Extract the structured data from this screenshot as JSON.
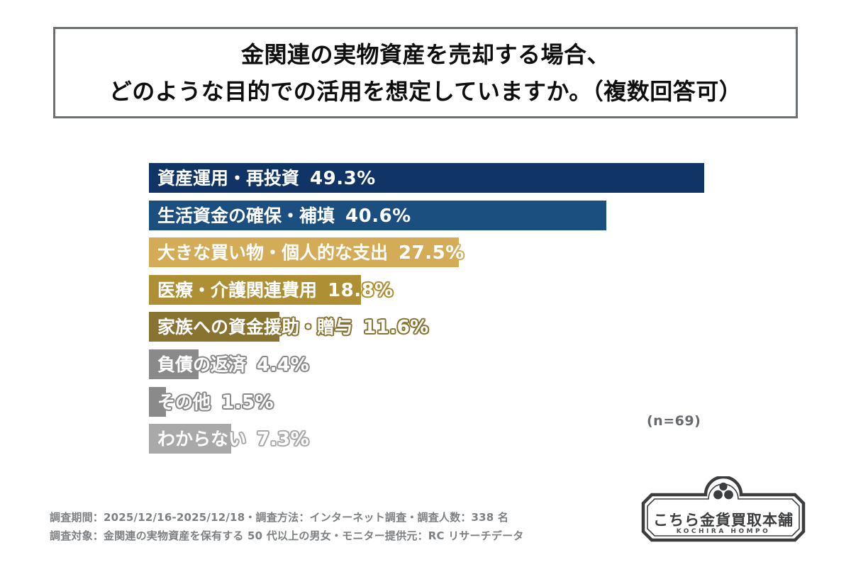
{
  "header": {
    "title_line1": "金関連の実物資産を売却する場合、",
    "title_line2": "どのような目的での活用を想定していますか。（複数回答可）"
  },
  "chart_data": {
    "type": "bar",
    "orientation": "horizontal",
    "unit": "%",
    "title": "金関連の実物資産を売却する場合、どのような目的での活用を想定していますか。（複数回答可）",
    "sample_note": "(n=69)",
    "categories": [
      "資産運用・再投資",
      "生活資金の確保・補填",
      "大きな買い物・個人的な支出",
      "医療・介護関連費用",
      "家族への資金援助・贈与",
      "負債の返済",
      "その他",
      "わからない"
    ],
    "values": [
      49.3,
      40.6,
      27.5,
      18.8,
      11.6,
      4.4,
      1.5,
      7.3
    ],
    "value_labels": [
      "49.3%",
      "40.6%",
      "27.5%",
      "18.8%",
      "11.6%",
      "4.4%",
      "1.5%",
      "7.3%"
    ],
    "bar_colors": [
      "#0f3465",
      "#1b4f80",
      "#d4ac58",
      "#ae8f33",
      "#897330",
      "#8a8a8a",
      "#8a8a8a",
      "#a9a9a9"
    ],
    "grid": false,
    "legend": false,
    "value_label_position": "inline-after-category"
  },
  "footer": {
    "line1": "調査期間：2025/12/16-2025/12/18・調査方法：インターネット調査・調査人数：338 名",
    "line2": "調査対象：金関連の実物資産を保有する 50 代以上の男女・モニター提供元：RC リサーチデータ"
  },
  "logo": {
    "brand_name": "こちら金貨買取本舗",
    "brand_romaji": "KOCHIRA HOMPO",
    "color": "#3b3d3f"
  }
}
